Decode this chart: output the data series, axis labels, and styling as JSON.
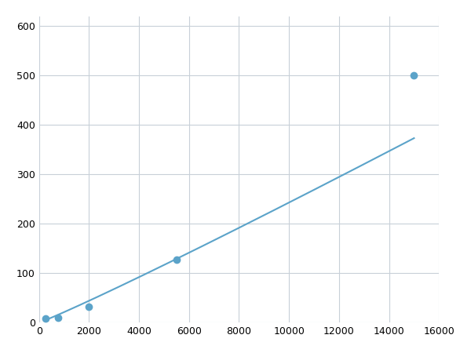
{
  "x": [
    250,
    750,
    2000,
    5500,
    15000
  ],
  "y": [
    8,
    10,
    32,
    128,
    500
  ],
  "line_color": "#5ba3c9",
  "marker_color": "#5ba3c9",
  "marker_size": 7,
  "line_width": 1.5,
  "xlim": [
    0,
    16000
  ],
  "ylim": [
    0,
    620
  ],
  "xticks": [
    0,
    2000,
    4000,
    6000,
    8000,
    10000,
    12000,
    14000,
    16000
  ],
  "yticks": [
    0,
    100,
    200,
    300,
    400,
    500,
    600
  ],
  "grid_color": "#c8d0d8",
  "grid_linestyle": "-",
  "background_color": "#ffffff",
  "figsize": [
    6.0,
    4.5
  ],
  "dpi": 100
}
